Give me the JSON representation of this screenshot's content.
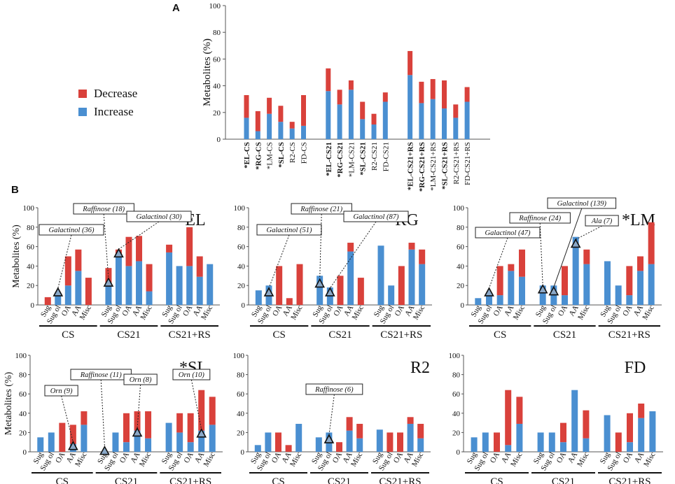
{
  "figure": {
    "colors": {
      "decrease": "#d9413b",
      "increase": "#4a8fd1"
    },
    "legend": {
      "decrease_label": "Decrease",
      "increase_label": "Increase"
    },
    "panel_a_letter": "A",
    "panel_b_letter": "B"
  },
  "chart_data": [
    {
      "type": "bar",
      "id": "A",
      "stacked": true,
      "ylabel": "Metabolites (%)",
      "ylim": [
        0,
        100
      ],
      "yticks": [
        0,
        20,
        40,
        60,
        80,
        100
      ],
      "categories": [
        "*EL-CS",
        "*RG-CS",
        "*LM-CS",
        "*SL-CS",
        "R2-CS",
        "FD-CS",
        "*EL-CS21",
        "*RG-CS21",
        "*LM-CS21",
        "*SL-CS21",
        "R2-CS21",
        "FD-CS21",
        "*EL-CS21+RS",
        "*RG-CS21+RS",
        "*LM-CS21+RS",
        "*SL-CS21+RS",
        "R2-CS21+RS",
        "FD-CS21+RS"
      ],
      "bold_categories": [
        "*EL-CS",
        "*RG-CS",
        "*SL-CS",
        "*EL-CS21",
        "*RG-CS21",
        "*SL-CS21",
        "*EL-CS21+RS",
        "*RG-CS21+RS",
        "*SL-CS21+RS"
      ],
      "groups": [
        6,
        6,
        6
      ],
      "series": [
        {
          "name": "Increase",
          "values": [
            16,
            6,
            19,
            13,
            8,
            10,
            36,
            26,
            37,
            15,
            11,
            28,
            48,
            27,
            30,
            23,
            16,
            28
          ]
        },
        {
          "name": "Decrease",
          "values": [
            17,
            15,
            12,
            12,
            5,
            23,
            17,
            11,
            7,
            13,
            8,
            7,
            18,
            16,
            15,
            21,
            10,
            11
          ]
        }
      ]
    },
    {
      "type": "bar",
      "id": "EL",
      "stacked": true,
      "title": "*EL",
      "ylabel": "Metabolites (%)",
      "ylim": [
        0,
        100
      ],
      "yticks": [
        0,
        20,
        40,
        60,
        80,
        100
      ],
      "categories": [
        "Sug",
        "Sug ol",
        "OA",
        "AA",
        "Misc"
      ],
      "groups": [
        "CS",
        "CS21",
        "CS21+RS"
      ],
      "series": [
        {
          "name": "Increase",
          "values": [
            [
              0,
              10,
              20,
              35,
              0
            ],
            [
              20,
              50,
              40,
              45,
              14
            ],
            [
              54,
              40,
              40,
              29,
              42
            ]
          ]
        },
        {
          "name": "Decrease",
          "values": [
            [
              8,
              0,
              30,
              22,
              28
            ],
            [
              18,
              7,
              30,
              26,
              28
            ],
            [
              8,
              0,
              40,
              21,
              0
            ]
          ]
        }
      ],
      "markers": [
        {
          "group": 0,
          "category": 1,
          "value": 13
        },
        {
          "group": 1,
          "category": 0,
          "value": 23
        },
        {
          "group": 1,
          "category": 1,
          "value": 53
        }
      ],
      "annotations": [
        {
          "text": "Galactinol (36)",
          "group": 0,
          "category": 1
        },
        {
          "text": "Raffinose (18)",
          "group": 1,
          "category": 0
        },
        {
          "text": "Galactinol (30)",
          "group": 1,
          "category": 1
        }
      ]
    },
    {
      "type": "bar",
      "id": "RG",
      "stacked": true,
      "title": "*RG",
      "ylabel": "",
      "ylim": [
        0,
        100
      ],
      "yticks": [
        0,
        20,
        40,
        60,
        80,
        100
      ],
      "categories": [
        "Sug",
        "Sug ol",
        "OA",
        "AA",
        "Misc"
      ],
      "groups": [
        "CS",
        "CS21",
        "CS21+RS"
      ],
      "series": [
        {
          "name": "Increase",
          "values": [
            [
              15,
              20,
              0,
              0,
              0
            ],
            [
              30,
              18,
              0,
              55,
              0
            ],
            [
              61,
              20,
              0,
              57,
              42
            ]
          ]
        },
        {
          "name": "Decrease",
          "values": [
            [
              0,
              0,
              40,
              7,
              42
            ],
            [
              0,
              0,
              30,
              9,
              28
            ],
            [
              0,
              0,
              40,
              7,
              15
            ]
          ]
        }
      ],
      "markers": [
        {
          "group": 0,
          "category": 1,
          "value": 13
        },
        {
          "group": 1,
          "category": 0,
          "value": 22
        },
        {
          "group": 1,
          "category": 1,
          "value": 13
        }
      ],
      "annotations": [
        {
          "text": "Galactinol (51)",
          "group": 0,
          "category": 1
        },
        {
          "text": "Raffinose (21)",
          "group": 1,
          "category": 0
        },
        {
          "text": "Galactinol (87)",
          "group": 1,
          "category": 1
        }
      ]
    },
    {
      "type": "bar",
      "id": "LM",
      "stacked": true,
      "title": "*LM",
      "ylabel": "",
      "ylim": [
        0,
        100
      ],
      "yticks": [
        0,
        20,
        40,
        60,
        80,
        100
      ],
      "categories": [
        "Sug",
        "Sug ol",
        "OA",
        "AA",
        "Misc"
      ],
      "groups": [
        "CS",
        "CS21",
        "CS21+RS"
      ],
      "series": [
        {
          "name": "Increase",
          "values": [
            [
              7,
              10,
              10,
              35,
              29
            ],
            [
              20,
              20,
              10,
              70,
              42
            ],
            [
              45,
              20,
              10,
              35,
              42
            ]
          ]
        },
        {
          "name": "Decrease",
          "values": [
            [
              0,
              0,
              30,
              7,
              28
            ],
            [
              0,
              0,
              30,
              0,
              15
            ],
            [
              0,
              0,
              30,
              15,
              43
            ]
          ]
        }
      ],
      "markers": [
        {
          "group": 0,
          "category": 1,
          "value": 13
        },
        {
          "group": 1,
          "category": 0,
          "value": 16
        },
        {
          "group": 1,
          "category": 1,
          "value": 14
        },
        {
          "group": 1,
          "category": 3,
          "value": 63
        }
      ],
      "annotations": [
        {
          "text": "Galactinol (47)",
          "group": 0,
          "category": 1
        },
        {
          "text": "Raffinose (24)",
          "group": 1,
          "category": 0
        },
        {
          "text": "Galactinol (139)",
          "group": 1,
          "category": 1
        },
        {
          "text": "Ala (7)",
          "group": 1,
          "category": 3
        }
      ]
    },
    {
      "type": "bar",
      "id": "SL",
      "stacked": true,
      "title": "*SL",
      "ylabel": "Metabolites (%)",
      "ylim": [
        0,
        100
      ],
      "yticks": [
        0,
        20,
        40,
        60,
        80,
        100
      ],
      "categories": [
        "Sug",
        "Sug ol",
        "OA",
        "AA",
        "Misc"
      ],
      "groups": [
        "CS",
        "CS21",
        "CS21+RS"
      ],
      "series": [
        {
          "name": "Increase",
          "values": [
            [
              15,
              20,
              0,
              8,
              28
            ],
            [
              0,
              20,
              10,
              22,
              14
            ],
            [
              30,
              20,
              10,
              22,
              28
            ]
          ]
        },
        {
          "name": "Decrease",
          "values": [
            [
              0,
              0,
              30,
              20,
              14
            ],
            [
              0,
              0,
              30,
              20,
              28
            ],
            [
              0,
              20,
              30,
              42,
              29
            ]
          ]
        }
      ],
      "markers": [
        {
          "group": 0,
          "category": 3,
          "value": 6
        },
        {
          "group": 1,
          "category": 0,
          "value": 1
        },
        {
          "group": 1,
          "category": 3,
          "value": 20
        },
        {
          "group": 2,
          "category": 3,
          "value": 19
        }
      ],
      "annotations": [
        {
          "text": "Orn (9)",
          "group": 0,
          "category": 3
        },
        {
          "text": "Raffinose (11)",
          "group": 1,
          "category": 0
        },
        {
          "text": "Orn (8)",
          "group": 1,
          "category": 3
        },
        {
          "text": "Orn (10)",
          "group": 2,
          "category": 3
        }
      ]
    },
    {
      "type": "bar",
      "id": "R2",
      "stacked": true,
      "title": "R2",
      "ylabel": "",
      "ylim": [
        0,
        100
      ],
      "yticks": [
        0,
        20,
        40,
        60,
        80,
        100
      ],
      "categories": [
        "Sug",
        "Sug ol",
        "OA",
        "AA",
        "Misc"
      ],
      "groups": [
        "CS",
        "CS21",
        "CS21+RS"
      ],
      "series": [
        {
          "name": "Increase",
          "values": [
            [
              7,
              20,
              0,
              0,
              29
            ],
            [
              15,
              20,
              0,
              22,
              14
            ],
            [
              23,
              0,
              0,
              29,
              14
            ]
          ]
        },
        {
          "name": "Decrease",
          "values": [
            [
              0,
              0,
              20,
              7,
              0
            ],
            [
              0,
              0,
              10,
              14,
              15
            ],
            [
              0,
              20,
              20,
              7,
              15
            ]
          ]
        }
      ],
      "markers": [
        {
          "group": 1,
          "category": 1,
          "value": 13
        }
      ],
      "annotations": [
        {
          "text": "Raffinose (6)",
          "group": 1,
          "category": 1
        }
      ]
    },
    {
      "type": "bar",
      "id": "FD",
      "stacked": true,
      "title": "FD",
      "ylabel": "",
      "ylim": [
        0,
        100
      ],
      "yticks": [
        0,
        20,
        40,
        60,
        80,
        100
      ],
      "categories": [
        "Sug",
        "Sug ol",
        "OA",
        "AA",
        "Misc"
      ],
      "groups": [
        "CS",
        "CS21",
        "CS21+RS"
      ],
      "series": [
        {
          "name": "Increase",
          "values": [
            [
              15,
              20,
              0,
              7,
              29
            ],
            [
              20,
              20,
              10,
              64,
              14
            ],
            [
              38,
              0,
              10,
              35,
              42
            ]
          ]
        },
        {
          "name": "Decrease",
          "values": [
            [
              0,
              0,
              20,
              57,
              28
            ],
            [
              0,
              0,
              20,
              0,
              29
            ],
            [
              0,
              20,
              30,
              15,
              0
            ]
          ]
        }
      ],
      "markers": [],
      "annotations": []
    }
  ]
}
